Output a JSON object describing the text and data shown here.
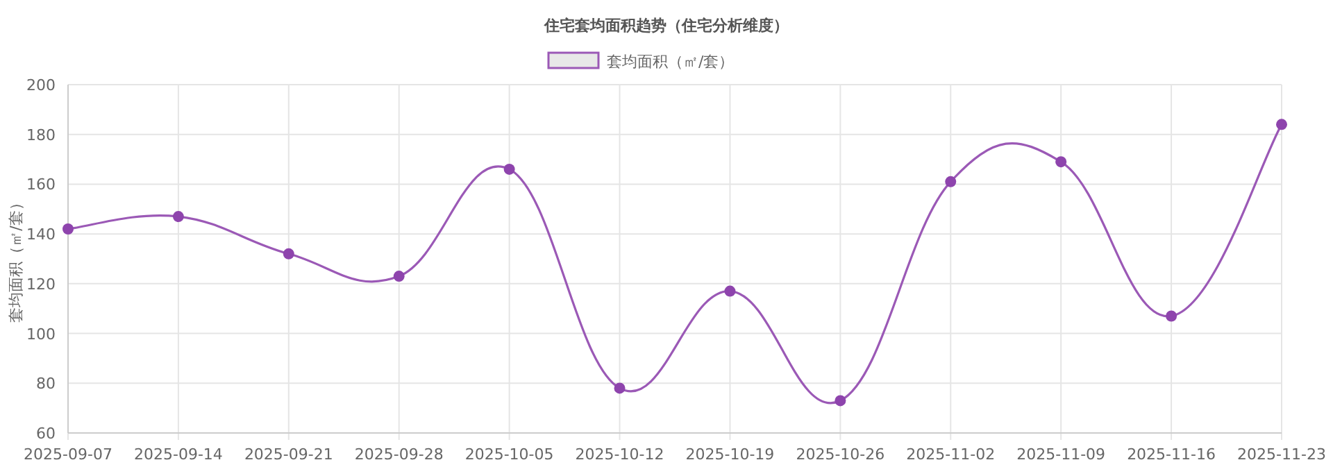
{
  "chart_data": {
    "type": "line",
    "title": "住宅套均面积趋势（住宅分析维度）",
    "ylabel": "套均面积（㎡/套）",
    "categories": [
      "2025-09-07",
      "2025-09-14",
      "2025-09-21",
      "2025-09-28",
      "2025-10-05",
      "2025-10-12",
      "2025-10-19",
      "2025-10-26",
      "2025-11-02",
      "2025-11-09",
      "2025-11-16",
      "2025-11-23"
    ],
    "series": [
      {
        "name": "套均面积（㎡/套）",
        "color": "#9b59b6",
        "values": [
          142,
          147,
          132,
          123,
          166,
          78,
          117,
          73,
          161,
          169,
          107,
          184
        ]
      }
    ],
    "ylim": [
      60,
      200
    ],
    "yticks": [
      60,
      80,
      100,
      120,
      140,
      160,
      180,
      200
    ],
    "grid": true,
    "legend": "top",
    "marker": "circle",
    "line_style": "solid"
  }
}
